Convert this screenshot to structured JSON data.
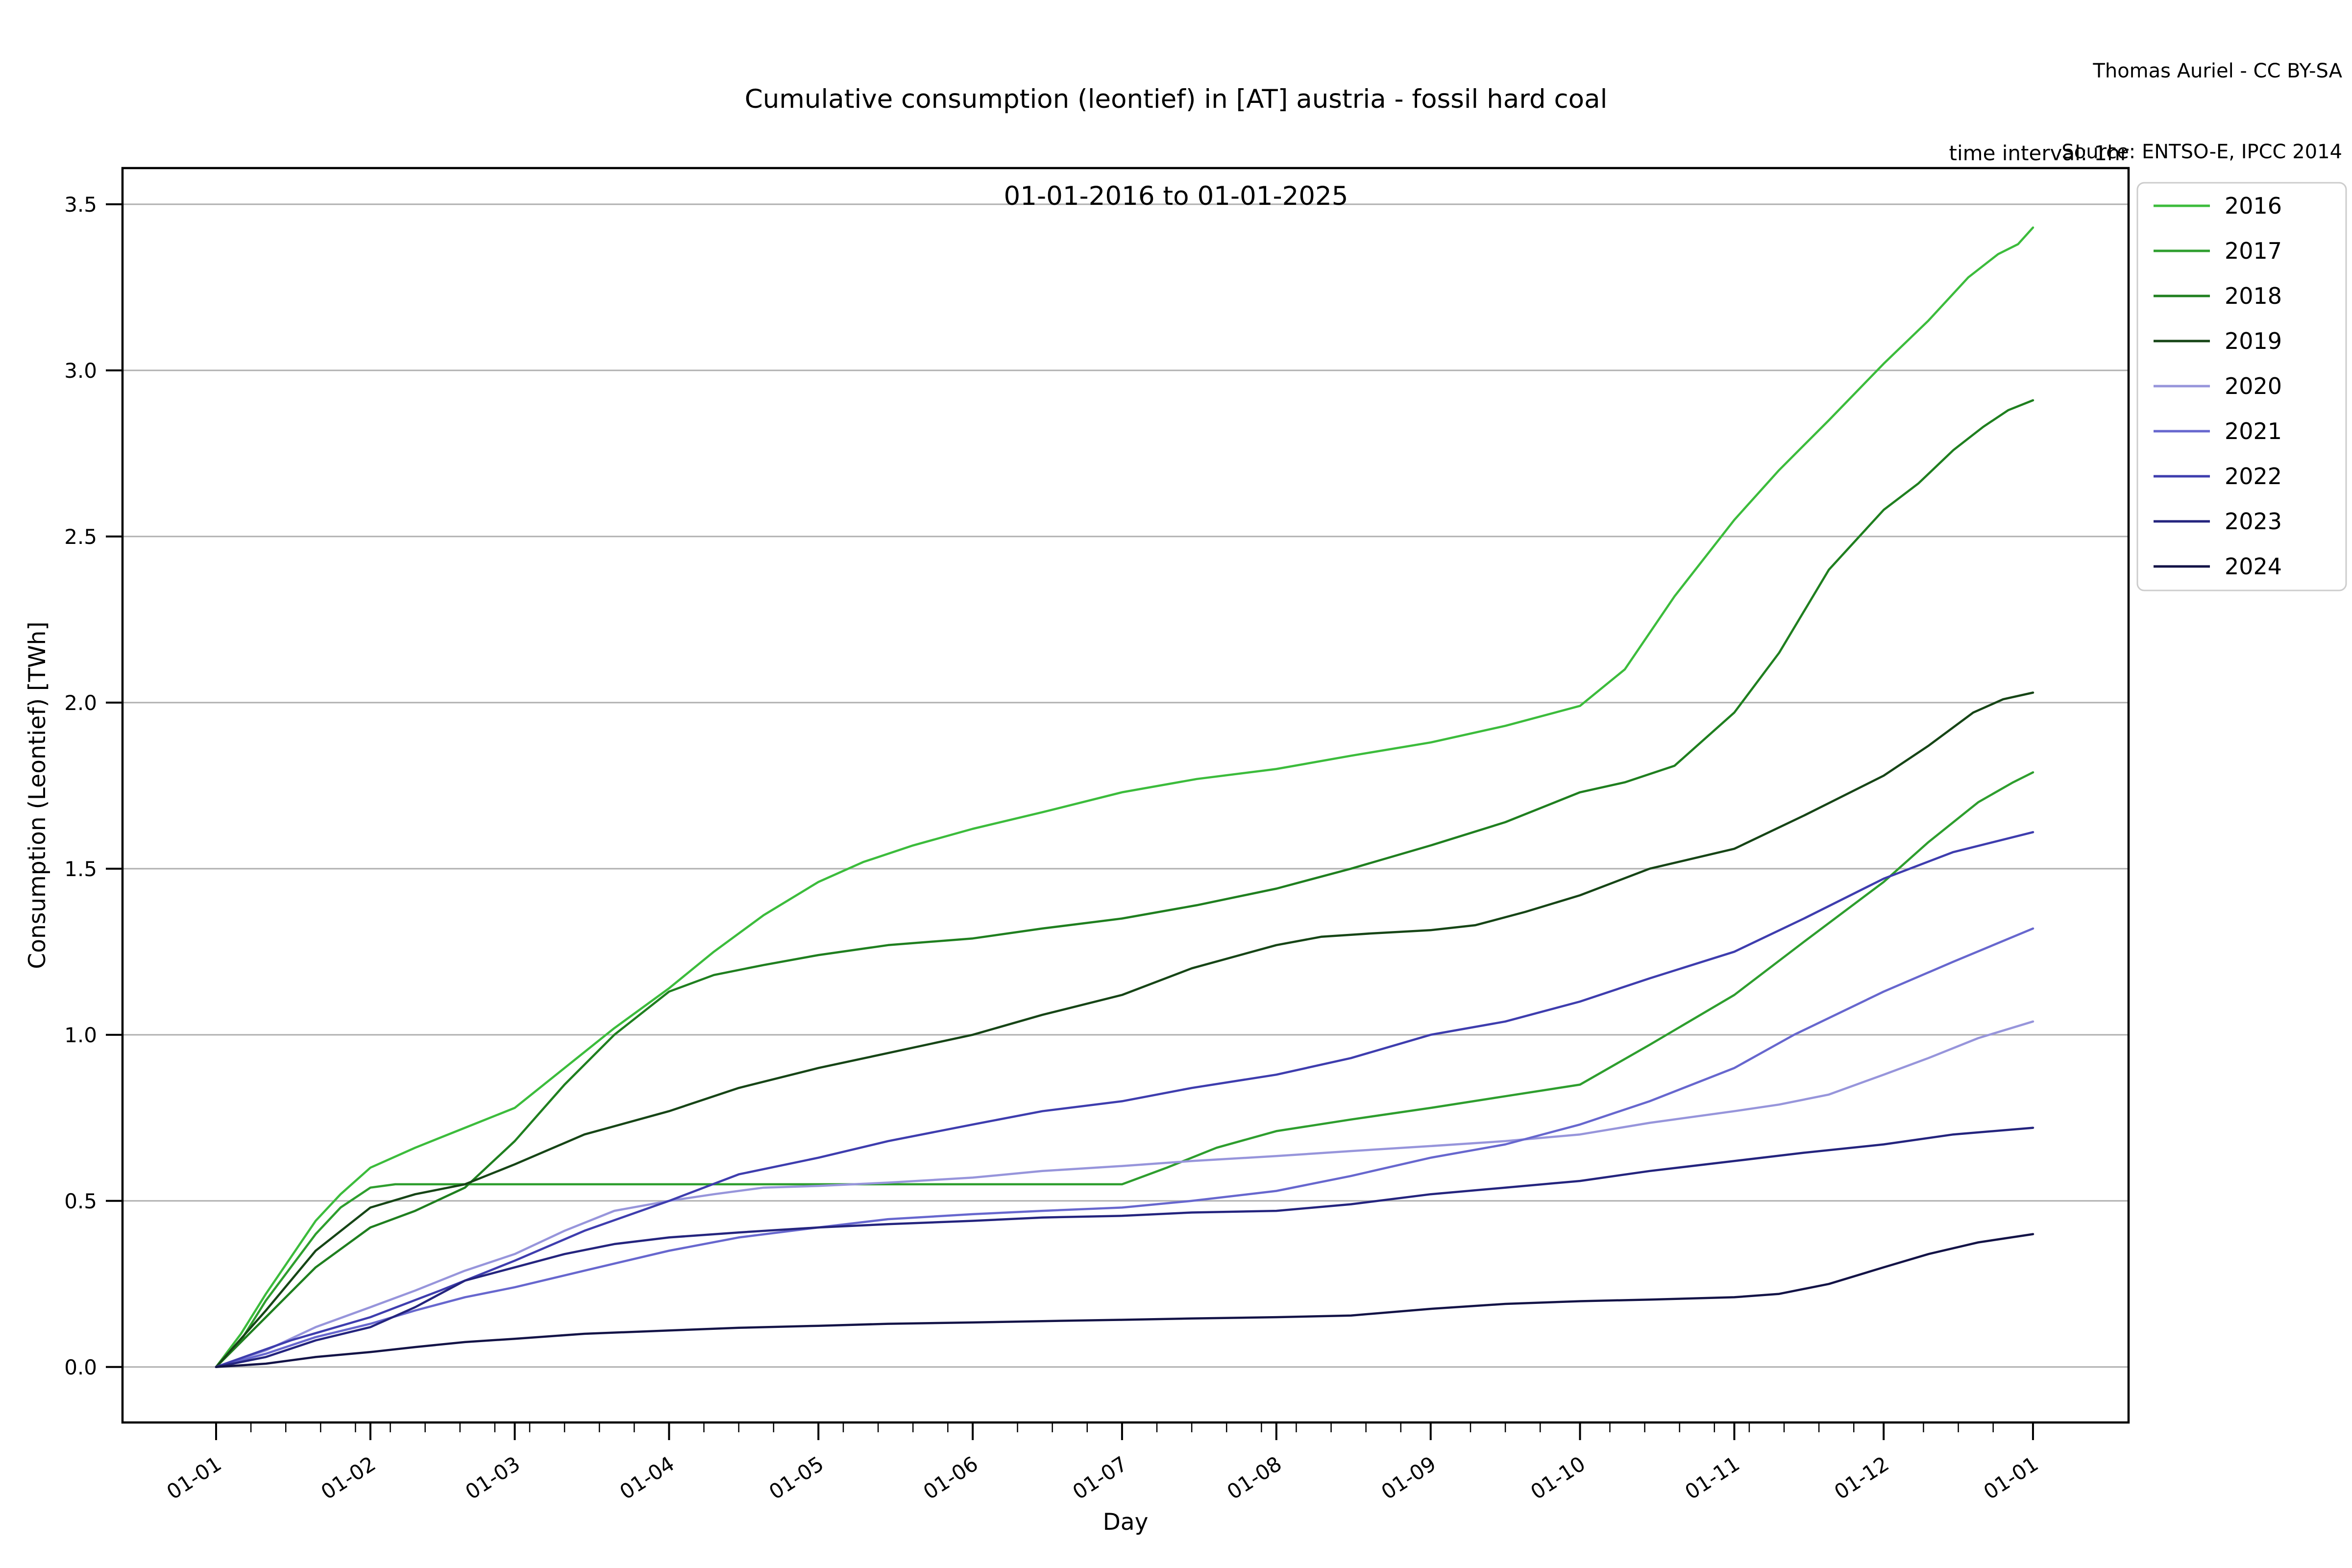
{
  "header": {
    "title_line1": "Cumulative consumption (leontief) in [AT] austria - fossil hard coal",
    "title_line2": "01-01-2016 to 01-01-2025",
    "attribution_line1": "Thomas Auriel - CC BY-SA",
    "attribution_line2": "Source: ENTSO-E, IPCC 2014",
    "time_interval_note": "time interval: 1hr"
  },
  "axes": {
    "xlabel": "Day",
    "ylabel": "Consumption (Leontief) [TWh]",
    "y_tick_labels": [
      "0.0",
      "0.5",
      "1.0",
      "1.5",
      "2.0",
      "2.5",
      "3.0",
      "3.5"
    ],
    "y_tick_values": [
      0,
      0.5,
      1,
      1.5,
      2,
      2.5,
      3,
      3.5
    ],
    "x_tick_labels": [
      "01-01",
      "01-02",
      "01-03",
      "01-04",
      "01-05",
      "01-06",
      "01-07",
      "01-08",
      "01-09",
      "01-10",
      "01-11",
      "01-12",
      "01-01"
    ],
    "x_tick_days": [
      0,
      31,
      60,
      91,
      121,
      152,
      182,
      213,
      244,
      274,
      305,
      335,
      365
    ],
    "grid_color": "#b0b0b0",
    "spine_color": "#000000"
  },
  "legend": {
    "position": "upper right outside",
    "entries": [
      "2016",
      "2017",
      "2018",
      "2019",
      "2020",
      "2021",
      "2022",
      "2023",
      "2024"
    ]
  },
  "chart_data": {
    "type": "line",
    "title": "Cumulative consumption (leontief) in [AT] austria - fossil hard coal 01-01-2016 to 01-01-2025",
    "xlabel": "Day",
    "ylabel": "Consumption (Leontief) [TWh]",
    "x_unit": "day-of-year",
    "xlim": [
      -18.8,
      384.2
    ],
    "ylim": [
      -0.167,
      3.609
    ],
    "grid": "horizontal",
    "legend_position": "right",
    "series": [
      {
        "name": "2016",
        "color": "#3cbc3c",
        "points": [
          [
            0,
            0
          ],
          [
            5,
            0.1
          ],
          [
            10,
            0.22
          ],
          [
            15,
            0.33
          ],
          [
            20,
            0.44
          ],
          [
            25,
            0.52
          ],
          [
            31,
            0.6
          ],
          [
            40,
            0.66
          ],
          [
            50,
            0.72
          ],
          [
            60,
            0.78
          ],
          [
            70,
            0.9
          ],
          [
            80,
            1.02
          ],
          [
            91,
            1.14
          ],
          [
            100,
            1.25
          ],
          [
            110,
            1.36
          ],
          [
            121,
            1.46
          ],
          [
            130,
            1.52
          ],
          [
            140,
            1.57
          ],
          [
            152,
            1.62
          ],
          [
            166,
            1.67
          ],
          [
            182,
            1.73
          ],
          [
            197,
            1.77
          ],
          [
            213,
            1.8
          ],
          [
            228,
            1.84
          ],
          [
            244,
            1.88
          ],
          [
            259,
            1.93
          ],
          [
            274,
            1.99
          ],
          [
            283,
            2.1
          ],
          [
            293,
            2.32
          ],
          [
            305,
            2.55
          ],
          [
            314,
            2.7
          ],
          [
            324,
            2.85
          ],
          [
            335,
            3.02
          ],
          [
            344,
            3.15
          ],
          [
            352,
            3.28
          ],
          [
            358,
            3.35
          ],
          [
            362,
            3.38
          ],
          [
            365,
            3.43
          ]
        ]
      },
      {
        "name": "2017",
        "color": "#2e9e2e",
        "points": [
          [
            0,
            0
          ],
          [
            5,
            0.08
          ],
          [
            10,
            0.2
          ],
          [
            15,
            0.3
          ],
          [
            20,
            0.4
          ],
          [
            25,
            0.48
          ],
          [
            31,
            0.54
          ],
          [
            36,
            0.55
          ],
          [
            182,
            0.55
          ],
          [
            191,
            0.6
          ],
          [
            201,
            0.66
          ],
          [
            213,
            0.71
          ],
          [
            228,
            0.745
          ],
          [
            244,
            0.78
          ],
          [
            259,
            0.815
          ],
          [
            274,
            0.85
          ],
          [
            288,
            0.97
          ],
          [
            305,
            1.12
          ],
          [
            319,
            1.28
          ],
          [
            335,
            1.46
          ],
          [
            344,
            1.58
          ],
          [
            354,
            1.7
          ],
          [
            361,
            1.76
          ],
          [
            365,
            1.79
          ]
        ]
      },
      {
        "name": "2018",
        "color": "#1f7f1f",
        "points": [
          [
            0,
            0
          ],
          [
            10,
            0.15
          ],
          [
            20,
            0.3
          ],
          [
            31,
            0.42
          ],
          [
            40,
            0.47
          ],
          [
            50,
            0.54
          ],
          [
            60,
            0.68
          ],
          [
            70,
            0.85
          ],
          [
            80,
            1.0
          ],
          [
            91,
            1.13
          ],
          [
            100,
            1.18
          ],
          [
            110,
            1.21
          ],
          [
            121,
            1.24
          ],
          [
            135,
            1.27
          ],
          [
            152,
            1.29
          ],
          [
            166,
            1.32
          ],
          [
            182,
            1.35
          ],
          [
            197,
            1.39
          ],
          [
            213,
            1.44
          ],
          [
            228,
            1.5
          ],
          [
            244,
            1.57
          ],
          [
            259,
            1.64
          ],
          [
            274,
            1.73
          ],
          [
            283,
            1.76
          ],
          [
            293,
            1.81
          ],
          [
            305,
            1.97
          ],
          [
            314,
            2.15
          ],
          [
            324,
            2.4
          ],
          [
            335,
            2.58
          ],
          [
            342,
            2.66
          ],
          [
            349,
            2.76
          ],
          [
            355,
            2.83
          ],
          [
            360,
            2.88
          ],
          [
            365,
            2.91
          ]
        ]
      },
      {
        "name": "2019",
        "color": "#164516",
        "points": [
          [
            0,
            0
          ],
          [
            10,
            0.17
          ],
          [
            20,
            0.35
          ],
          [
            31,
            0.48
          ],
          [
            40,
            0.52
          ],
          [
            50,
            0.55
          ],
          [
            60,
            0.61
          ],
          [
            74,
            0.7
          ],
          [
            91,
            0.77
          ],
          [
            105,
            0.84
          ],
          [
            121,
            0.9
          ],
          [
            135,
            0.945
          ],
          [
            152,
            1.0
          ],
          [
            166,
            1.06
          ],
          [
            182,
            1.12
          ],
          [
            196,
            1.2
          ],
          [
            213,
            1.27
          ],
          [
            222,
            1.295
          ],
          [
            232,
            1.305
          ],
          [
            244,
            1.315
          ],
          [
            253,
            1.33
          ],
          [
            263,
            1.37
          ],
          [
            274,
            1.42
          ],
          [
            288,
            1.5
          ],
          [
            305,
            1.56
          ],
          [
            319,
            1.66
          ],
          [
            335,
            1.78
          ],
          [
            344,
            1.87
          ],
          [
            353,
            1.97
          ],
          [
            359,
            2.01
          ],
          [
            365,
            2.03
          ]
        ]
      },
      {
        "name": "2020",
        "color": "#9795db",
        "points": [
          [
            0,
            0
          ],
          [
            10,
            0.05
          ],
          [
            20,
            0.12
          ],
          [
            31,
            0.18
          ],
          [
            40,
            0.23
          ],
          [
            50,
            0.29
          ],
          [
            60,
            0.34
          ],
          [
            70,
            0.41
          ],
          [
            80,
            0.47
          ],
          [
            91,
            0.5
          ],
          [
            100,
            0.52
          ],
          [
            110,
            0.54
          ],
          [
            121,
            0.545
          ],
          [
            135,
            0.555
          ],
          [
            152,
            0.57
          ],
          [
            166,
            0.59
          ],
          [
            182,
            0.605
          ],
          [
            196,
            0.62
          ],
          [
            213,
            0.635
          ],
          [
            228,
            0.65
          ],
          [
            244,
            0.665
          ],
          [
            259,
            0.68
          ],
          [
            274,
            0.7
          ],
          [
            288,
            0.735
          ],
          [
            305,
            0.77
          ],
          [
            314,
            0.79
          ],
          [
            324,
            0.82
          ],
          [
            335,
            0.88
          ],
          [
            344,
            0.93
          ],
          [
            354,
            0.99
          ],
          [
            365,
            1.04
          ]
        ]
      },
      {
        "name": "2021",
        "color": "#6767ce",
        "points": [
          [
            0,
            0
          ],
          [
            10,
            0.04
          ],
          [
            20,
            0.09
          ],
          [
            31,
            0.13
          ],
          [
            40,
            0.17
          ],
          [
            50,
            0.21
          ],
          [
            60,
            0.24
          ],
          [
            74,
            0.29
          ],
          [
            91,
            0.35
          ],
          [
            105,
            0.39
          ],
          [
            121,
            0.42
          ],
          [
            135,
            0.445
          ],
          [
            152,
            0.46
          ],
          [
            166,
            0.47
          ],
          [
            182,
            0.48
          ],
          [
            196,
            0.5
          ],
          [
            213,
            0.53
          ],
          [
            228,
            0.575
          ],
          [
            244,
            0.63
          ],
          [
            259,
            0.67
          ],
          [
            274,
            0.73
          ],
          [
            288,
            0.8
          ],
          [
            305,
            0.9
          ],
          [
            317,
            1.0
          ],
          [
            335,
            1.13
          ],
          [
            349,
            1.22
          ],
          [
            365,
            1.32
          ]
        ]
      },
      {
        "name": "2022",
        "color": "#3e3dae",
        "points": [
          [
            0,
            0
          ],
          [
            15,
            0.08
          ],
          [
            31,
            0.15
          ],
          [
            45,
            0.23
          ],
          [
            60,
            0.32
          ],
          [
            74,
            0.41
          ],
          [
            91,
            0.5
          ],
          [
            105,
            0.58
          ],
          [
            121,
            0.63
          ],
          [
            135,
            0.68
          ],
          [
            152,
            0.73
          ],
          [
            166,
            0.77
          ],
          [
            182,
            0.8
          ],
          [
            196,
            0.84
          ],
          [
            213,
            0.88
          ],
          [
            228,
            0.93
          ],
          [
            244,
            1.0
          ],
          [
            259,
            1.04
          ],
          [
            274,
            1.1
          ],
          [
            288,
            1.17
          ],
          [
            305,
            1.25
          ],
          [
            319,
            1.35
          ],
          [
            335,
            1.47
          ],
          [
            349,
            1.55
          ],
          [
            365,
            1.61
          ]
        ]
      },
      {
        "name": "2023",
        "color": "#24247e",
        "points": [
          [
            0,
            0
          ],
          [
            10,
            0.03
          ],
          [
            20,
            0.08
          ],
          [
            31,
            0.12
          ],
          [
            40,
            0.18
          ],
          [
            50,
            0.26
          ],
          [
            60,
            0.3
          ],
          [
            70,
            0.34
          ],
          [
            80,
            0.37
          ],
          [
            91,
            0.39
          ],
          [
            105,
            0.405
          ],
          [
            121,
            0.42
          ],
          [
            135,
            0.43
          ],
          [
            152,
            0.44
          ],
          [
            166,
            0.45
          ],
          [
            182,
            0.455
          ],
          [
            196,
            0.465
          ],
          [
            213,
            0.47
          ],
          [
            228,
            0.49
          ],
          [
            244,
            0.52
          ],
          [
            259,
            0.54
          ],
          [
            274,
            0.56
          ],
          [
            288,
            0.59
          ],
          [
            305,
            0.62
          ],
          [
            319,
            0.645
          ],
          [
            335,
            0.67
          ],
          [
            349,
            0.7
          ],
          [
            365,
            0.72
          ]
        ]
      },
      {
        "name": "2024",
        "color": "#131347",
        "points": [
          [
            0,
            0
          ],
          [
            10,
            0.01
          ],
          [
            20,
            0.03
          ],
          [
            31,
            0.045
          ],
          [
            40,
            0.06
          ],
          [
            50,
            0.075
          ],
          [
            60,
            0.085
          ],
          [
            74,
            0.1
          ],
          [
            91,
            0.11
          ],
          [
            105,
            0.118
          ],
          [
            121,
            0.124
          ],
          [
            135,
            0.13
          ],
          [
            152,
            0.134
          ],
          [
            166,
            0.138
          ],
          [
            182,
            0.142
          ],
          [
            196,
            0.146
          ],
          [
            213,
            0.15
          ],
          [
            228,
            0.155
          ],
          [
            244,
            0.175
          ],
          [
            259,
            0.19
          ],
          [
            274,
            0.198
          ],
          [
            288,
            0.203
          ],
          [
            305,
            0.21
          ],
          [
            314,
            0.22
          ],
          [
            324,
            0.25
          ],
          [
            335,
            0.3
          ],
          [
            344,
            0.34
          ],
          [
            354,
            0.375
          ],
          [
            365,
            0.4
          ]
        ]
      }
    ]
  }
}
